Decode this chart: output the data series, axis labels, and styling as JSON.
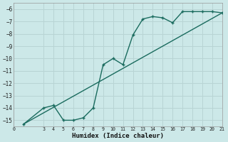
{
  "title": "",
  "xlabel": "Humidex (Indice chaleur)",
  "bg_color": "#cce8e8",
  "grid_color": "#b8d4d4",
  "line_color": "#1a6b5e",
  "xlim": [
    0,
    21
  ],
  "ylim": [
    -15.5,
    -5.5
  ],
  "xticks": [
    0,
    3,
    4,
    5,
    6,
    7,
    8,
    9,
    10,
    11,
    12,
    13,
    14,
    15,
    16,
    17,
    18,
    19,
    20,
    21
  ],
  "yticks": [
    -6,
    -7,
    -8,
    -9,
    -10,
    -11,
    -12,
    -13,
    -14,
    -15
  ],
  "curve_x": [
    1,
    3,
    4,
    5,
    6,
    7,
    8,
    9,
    10,
    11,
    12,
    13,
    14,
    15,
    16,
    17,
    18,
    19,
    20,
    21
  ],
  "curve_y": [
    -15.3,
    -14.0,
    -13.8,
    -15.0,
    -15.0,
    -14.8,
    -14.0,
    -10.5,
    -10.0,
    -10.5,
    -8.1,
    -6.8,
    -6.6,
    -6.7,
    -7.1,
    -6.2,
    -6.2,
    -6.2,
    -6.2,
    -6.3
  ],
  "line_x": [
    1,
    21
  ],
  "line_y": [
    -15.3,
    -6.3
  ]
}
